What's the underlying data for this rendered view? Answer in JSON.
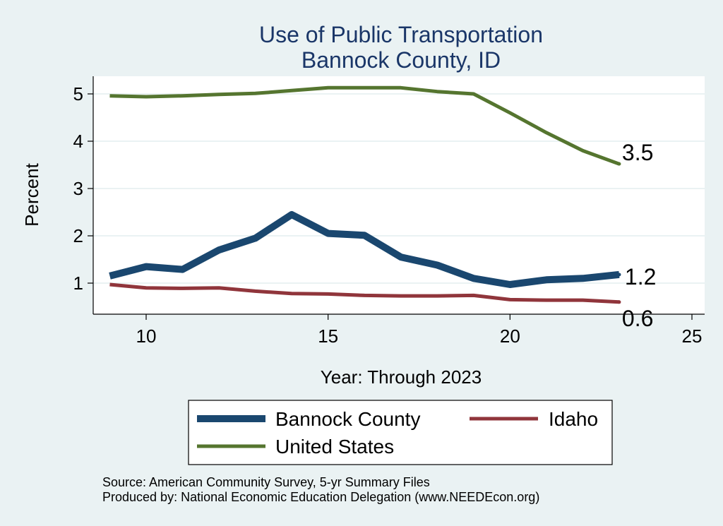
{
  "chart_data": {
    "type": "line",
    "title": [
      "Use of Public Transportation",
      "Bannock County, ID"
    ],
    "xlabel": "Year: Through 2023",
    "ylabel": "Percent",
    "xlim": [
      9,
      25
    ],
    "ylim": [
      0.35,
      5.3
    ],
    "xticks": [
      10,
      15,
      20,
      25
    ],
    "yticks": [
      1,
      2,
      3,
      4,
      5
    ],
    "grid": true,
    "x": [
      9,
      10,
      11,
      12,
      13,
      14,
      15,
      16,
      17,
      18,
      19,
      20,
      21,
      22,
      23
    ],
    "series": [
      {
        "name": "Bannock County",
        "color": "#1a476f",
        "values": [
          1.15,
          1.35,
          1.29,
          1.7,
          1.95,
          2.45,
          2.05,
          2.01,
          1.55,
          1.38,
          1.1,
          0.97,
          1.07,
          1.1,
          1.18
        ],
        "end_label": "1.2"
      },
      {
        "name": "Idaho",
        "color": "#90353b",
        "values": [
          0.97,
          0.9,
          0.89,
          0.9,
          0.83,
          0.78,
          0.77,
          0.74,
          0.73,
          0.73,
          0.74,
          0.65,
          0.64,
          0.64,
          0.6
        ],
        "end_label": "0.6"
      },
      {
        "name": "United States",
        "color": "#55752f",
        "values": [
          4.96,
          4.94,
          4.96,
          4.99,
          5.01,
          5.07,
          5.13,
          5.13,
          5.13,
          5.05,
          5.0,
          4.6,
          4.18,
          3.8,
          3.52
        ],
        "end_label": "3.5"
      }
    ],
    "legend": {
      "position": "bottom",
      "entries": [
        "Bannock County",
        "Idaho",
        "United States"
      ]
    }
  },
  "footer": {
    "source": "Source: American Community Survey, 5-yr Summary Files",
    "producer": "Produced by: National Economic Education Delegation (www.NEEDEcon.org)"
  }
}
